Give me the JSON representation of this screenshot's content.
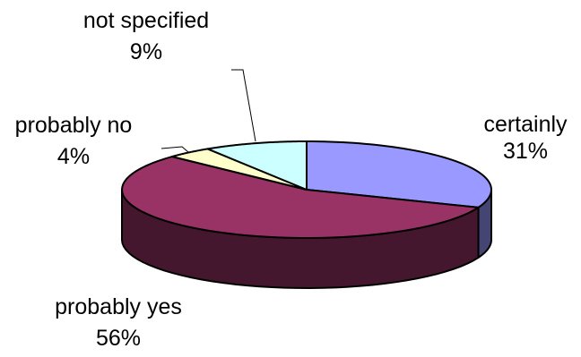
{
  "chart_data": {
    "type": "pie",
    "style": "3d-exploded-none",
    "categories": [
      "certainly",
      "probably yes",
      "probably no",
      "not specified"
    ],
    "values": [
      31,
      56,
      4,
      9
    ],
    "value_labels": [
      "31%",
      "56%",
      "4%",
      "9%"
    ],
    "colors": {
      "certainly": "#9999ff",
      "probably yes": "#993366",
      "probably no": "#ffffcc",
      "not specified": "#ccffff",
      "outline": "#000000"
    },
    "title": "",
    "legend": "none",
    "start_angle_description": "first slice starts at 12 o'clock, proceeding clockwise"
  }
}
